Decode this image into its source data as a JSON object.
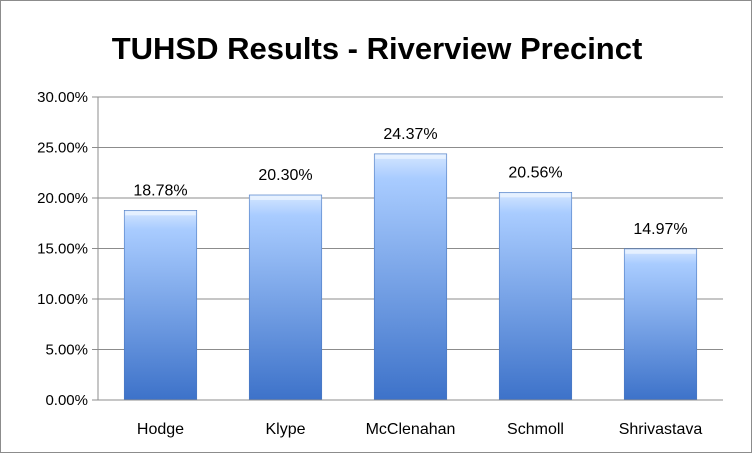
{
  "chart_data": {
    "type": "bar",
    "title": "TUHSD Results - Riverview Precinct",
    "categories": [
      "Hodge",
      "Klype",
      "McClenahan",
      "Schmoll",
      "Shrivastava"
    ],
    "values": [
      18.78,
      20.3,
      24.37,
      20.56,
      14.97
    ],
    "value_labels": [
      "18.78%",
      "20.30%",
      "24.37%",
      "20.56%",
      "14.97%"
    ],
    "yticks": [
      "0.00%",
      "5.00%",
      "10.00%",
      "15.00%",
      "20.00%",
      "25.00%",
      "30.00%"
    ],
    "ytick_values": [
      0,
      5,
      10,
      15,
      20,
      25,
      30
    ],
    "ylim": [
      0,
      30
    ],
    "grid": true,
    "legend": "none",
    "bar_color_top": "#cfe3ff",
    "bar_color_bottom": "#3a6fc7"
  }
}
